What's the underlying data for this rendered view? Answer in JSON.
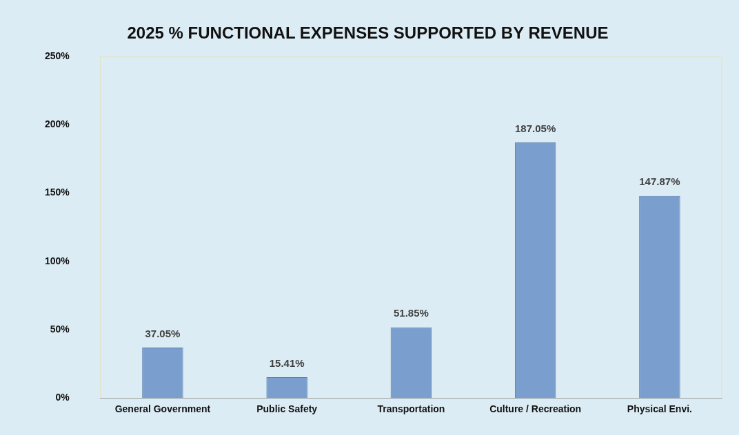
{
  "chart_data": {
    "type": "bar",
    "title": "2025 % FUNCTIONAL EXPENSES SUPPORTED BY REVENUE",
    "categories": [
      "General Government",
      "Public Safety",
      "Transportation",
      "Culture / Recreation",
      "Physical Envi."
    ],
    "values": [
      37.05,
      15.41,
      51.85,
      187.05,
      147.87
    ],
    "value_labels": [
      "37.05%",
      "15.41%",
      "51.85%",
      "187.05%",
      "147.87%"
    ],
    "color": "#7a9fcf",
    "ylim": [
      0,
      250
    ],
    "yticks": [
      {
        "value": 0,
        "label": "0%"
      },
      {
        "value": 50,
        "label": "50%"
      },
      {
        "value": 100,
        "label": "100%"
      },
      {
        "value": 150,
        "label": "150%"
      },
      {
        "value": 200,
        "label": "200%"
      },
      {
        "value": 250,
        "label": "250%"
      }
    ],
    "grid": false,
    "legend": false
  }
}
